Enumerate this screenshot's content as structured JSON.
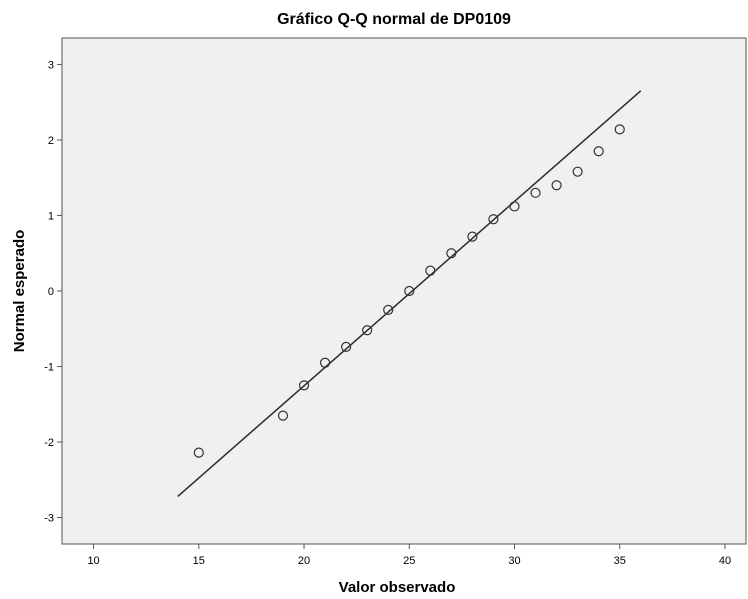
{
  "chart_data": {
    "type": "scatter",
    "title": "Gráfico Q-Q normal de DP0109",
    "xlabel": "Valor observado",
    "ylabel": "Normal esperado",
    "xlim": [
      8.5,
      41
    ],
    "ylim": [
      -3.35,
      3.35
    ],
    "xticks": [
      10,
      15,
      20,
      25,
      30,
      35,
      40
    ],
    "yticks": [
      -3,
      -2,
      -1,
      0,
      1,
      2,
      3
    ],
    "grid": false,
    "legend": "none",
    "colors": {
      "plot_background": "#f0f0f0",
      "points": "#333333",
      "line": "#2b2b2b"
    },
    "points": [
      {
        "x": 15,
        "y": -2.14
      },
      {
        "x": 19,
        "y": -1.65
      },
      {
        "x": 20,
        "y": -1.25
      },
      {
        "x": 21,
        "y": -0.95
      },
      {
        "x": 22,
        "y": -0.74
      },
      {
        "x": 23,
        "y": -0.52
      },
      {
        "x": 24,
        "y": -0.25
      },
      {
        "x": 25,
        "y": 0.0
      },
      {
        "x": 26,
        "y": 0.27
      },
      {
        "x": 27,
        "y": 0.5
      },
      {
        "x": 28,
        "y": 0.72
      },
      {
        "x": 29,
        "y": 0.95
      },
      {
        "x": 30,
        "y": 1.12
      },
      {
        "x": 31,
        "y": 1.3
      },
      {
        "x": 32,
        "y": 1.4
      },
      {
        "x": 33,
        "y": 1.58
      },
      {
        "x": 34,
        "y": 1.85
      },
      {
        "x": 35,
        "y": 2.14
      }
    ],
    "reference_line": {
      "x": [
        14,
        36
      ],
      "y": [
        -2.72,
        2.65
      ]
    }
  }
}
